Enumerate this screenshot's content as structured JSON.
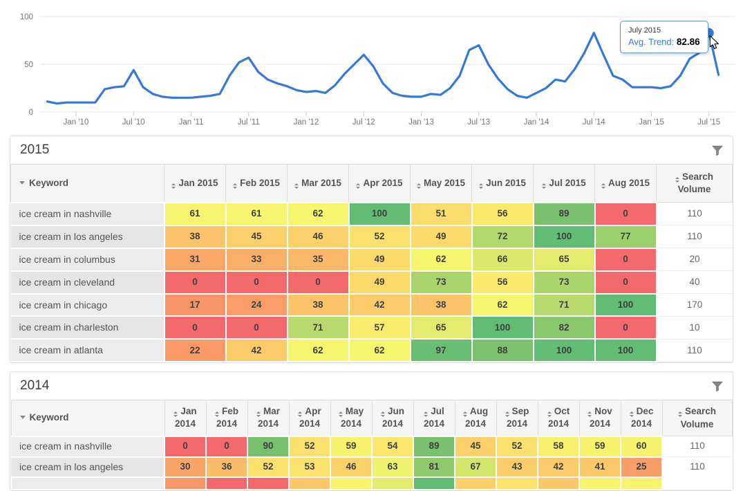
{
  "chart_data": {
    "type": "line",
    "title": "",
    "xlabel": "",
    "ylabel": "",
    "ylim": [
      0,
      100
    ],
    "yticks": [
      0,
      50,
      100
    ],
    "xticks": [
      "Jan '10",
      "Jul '10",
      "Jan '11",
      "Jul '11",
      "Jan '12",
      "Jul '12",
      "Jan '13",
      "Jul '13",
      "Jan '14",
      "Jul '14",
      "Jan '15",
      "Jul '15"
    ],
    "grid": true,
    "legend": false,
    "x": [
      "2009-10",
      "2009-11",
      "2009-12",
      "2010-01",
      "2010-02",
      "2010-03",
      "2010-04",
      "2010-05",
      "2010-06",
      "2010-07",
      "2010-08",
      "2010-09",
      "2010-10",
      "2010-11",
      "2010-12",
      "2011-01",
      "2011-02",
      "2011-03",
      "2011-04",
      "2011-05",
      "2011-06",
      "2011-07",
      "2011-08",
      "2011-09",
      "2011-10",
      "2011-11",
      "2011-12",
      "2012-01",
      "2012-02",
      "2012-03",
      "2012-04",
      "2012-05",
      "2012-06",
      "2012-07",
      "2012-08",
      "2012-09",
      "2012-10",
      "2012-11",
      "2012-12",
      "2013-01",
      "2013-02",
      "2013-03",
      "2013-04",
      "2013-05",
      "2013-06",
      "2013-07",
      "2013-08",
      "2013-09",
      "2013-10",
      "2013-11",
      "2013-12",
      "2014-01",
      "2014-02",
      "2014-03",
      "2014-04",
      "2014-05",
      "2014-06",
      "2014-07",
      "2014-08",
      "2014-09",
      "2014-10",
      "2014-11",
      "2014-12",
      "2015-01",
      "2015-02",
      "2015-03",
      "2015-04",
      "2015-05",
      "2015-06",
      "2015-07",
      "2015-08"
    ],
    "series": [
      {
        "name": "Avg. Trend",
        "values": [
          11,
          9,
          10,
          10,
          10,
          10,
          24,
          26,
          27,
          44,
          26,
          19,
          16,
          15,
          15,
          15,
          16,
          17,
          19,
          38,
          52,
          57,
          42,
          34,
          30,
          27,
          23,
          21,
          22,
          20,
          28,
          40,
          50,
          60,
          48,
          30,
          20,
          17,
          16,
          16,
          19,
          18,
          25,
          38,
          65,
          70,
          50,
          35,
          24,
          17,
          15,
          20,
          25,
          34,
          32,
          45,
          62,
          83,
          60,
          38,
          34,
          26,
          26,
          26,
          25,
          27,
          38,
          56,
          62,
          82.86,
          39
        ]
      }
    ],
    "marker": {
      "x": "2015-07",
      "value": 82.86
    }
  },
  "chart": {
    "tooltip": {
      "title": "July 2015",
      "label": "Avg. Trend:",
      "value": "82.86"
    }
  },
  "panels": [
    {
      "title": "2015",
      "keyword_header": "Keyword",
      "search_header": "Search Volume",
      "month_columns": [
        "Jan 2015",
        "Feb 2015",
        "Mar 2015",
        "Apr 2015",
        "May 2015",
        "Jun 2015",
        "Jul 2015",
        "Aug 2015"
      ],
      "rows": [
        {
          "keyword": "ice cream in nashville",
          "values": [
            61,
            61,
            62,
            100,
            51,
            56,
            89,
            0
          ],
          "search_volume": 110
        },
        {
          "keyword": "ice cream in los angeles",
          "values": [
            38,
            45,
            46,
            52,
            49,
            72,
            100,
            77
          ],
          "search_volume": 110
        },
        {
          "keyword": "ice cream in columbus",
          "values": [
            31,
            33,
            35,
            49,
            62,
            66,
            65,
            0
          ],
          "search_volume": 20
        },
        {
          "keyword": "ice cream in cleveland",
          "values": [
            0,
            0,
            0,
            49,
            73,
            56,
            73,
            0
          ],
          "search_volume": 40
        },
        {
          "keyword": "ice cream in chicago",
          "values": [
            17,
            24,
            38,
            42,
            38,
            62,
            71,
            100
          ],
          "search_volume": 170
        },
        {
          "keyword": "ice cream in charleston",
          "values": [
            0,
            0,
            71,
            57,
            65,
            100,
            82,
            0
          ],
          "search_volume": 10
        },
        {
          "keyword": "ice cream in atlanta",
          "values": [
            22,
            42,
            62,
            62,
            97,
            88,
            100,
            100
          ],
          "search_volume": 110
        }
      ]
    },
    {
      "title": "2014",
      "keyword_header": "Keyword",
      "search_header": "Search Volume",
      "month_columns": [
        "Jan 2014",
        "Feb 2014",
        "Mar 2014",
        "Apr 2014",
        "May 2014",
        "Jun 2014",
        "Jul 2014",
        "Aug 2014",
        "Sep 2014",
        "Oct 2014",
        "Nov 2014",
        "Dec 2014"
      ],
      "rows": [
        {
          "keyword": "ice cream in nashville",
          "values": [
            0,
            0,
            90,
            52,
            59,
            54,
            89,
            45,
            52,
            58,
            59,
            60
          ],
          "search_volume": 110
        },
        {
          "keyword": "ice cream in los angeles",
          "values": [
            30,
            36,
            52,
            53,
            46,
            63,
            81,
            67,
            43,
            42,
            41,
            25
          ],
          "search_volume": 110
        }
      ],
      "partial_next_row_colors": [
        "#f9966a",
        "#f4696b",
        "#f4696b",
        "#fbc76b",
        "#f8f26e",
        "#e1eb6d",
        "#62bd74",
        "#fbd06b",
        "#fae26d",
        "#fbc76b",
        "#f8f26e",
        "#f8f26e"
      ]
    }
  ],
  "icons": {
    "sort": "up-down-triangles",
    "keyword_sort": "down-triangle",
    "filter": "funnel"
  },
  "colors": {
    "line_blue": "#3579d8",
    "tooltip_label_blue": "#3b7dc8",
    "grid": "#e6e6e6",
    "axis_text": "#737373",
    "heat_scale": [
      [
        0,
        "#f4696b"
      ],
      [
        17,
        "#f99467"
      ],
      [
        25,
        "#f99d67"
      ],
      [
        31,
        "#faa768"
      ],
      [
        38,
        "#fbc469"
      ],
      [
        46,
        "#fbd26a"
      ],
      [
        53,
        "#fae26d"
      ],
      [
        59,
        "#f8f16e"
      ],
      [
        62,
        "#f5f56e"
      ],
      [
        66,
        "#dbe86c"
      ],
      [
        73,
        "#a9d56c"
      ],
      [
        82,
        "#8ac86d"
      ],
      [
        90,
        "#76c06e"
      ],
      [
        100,
        "#62bd74"
      ]
    ]
  }
}
